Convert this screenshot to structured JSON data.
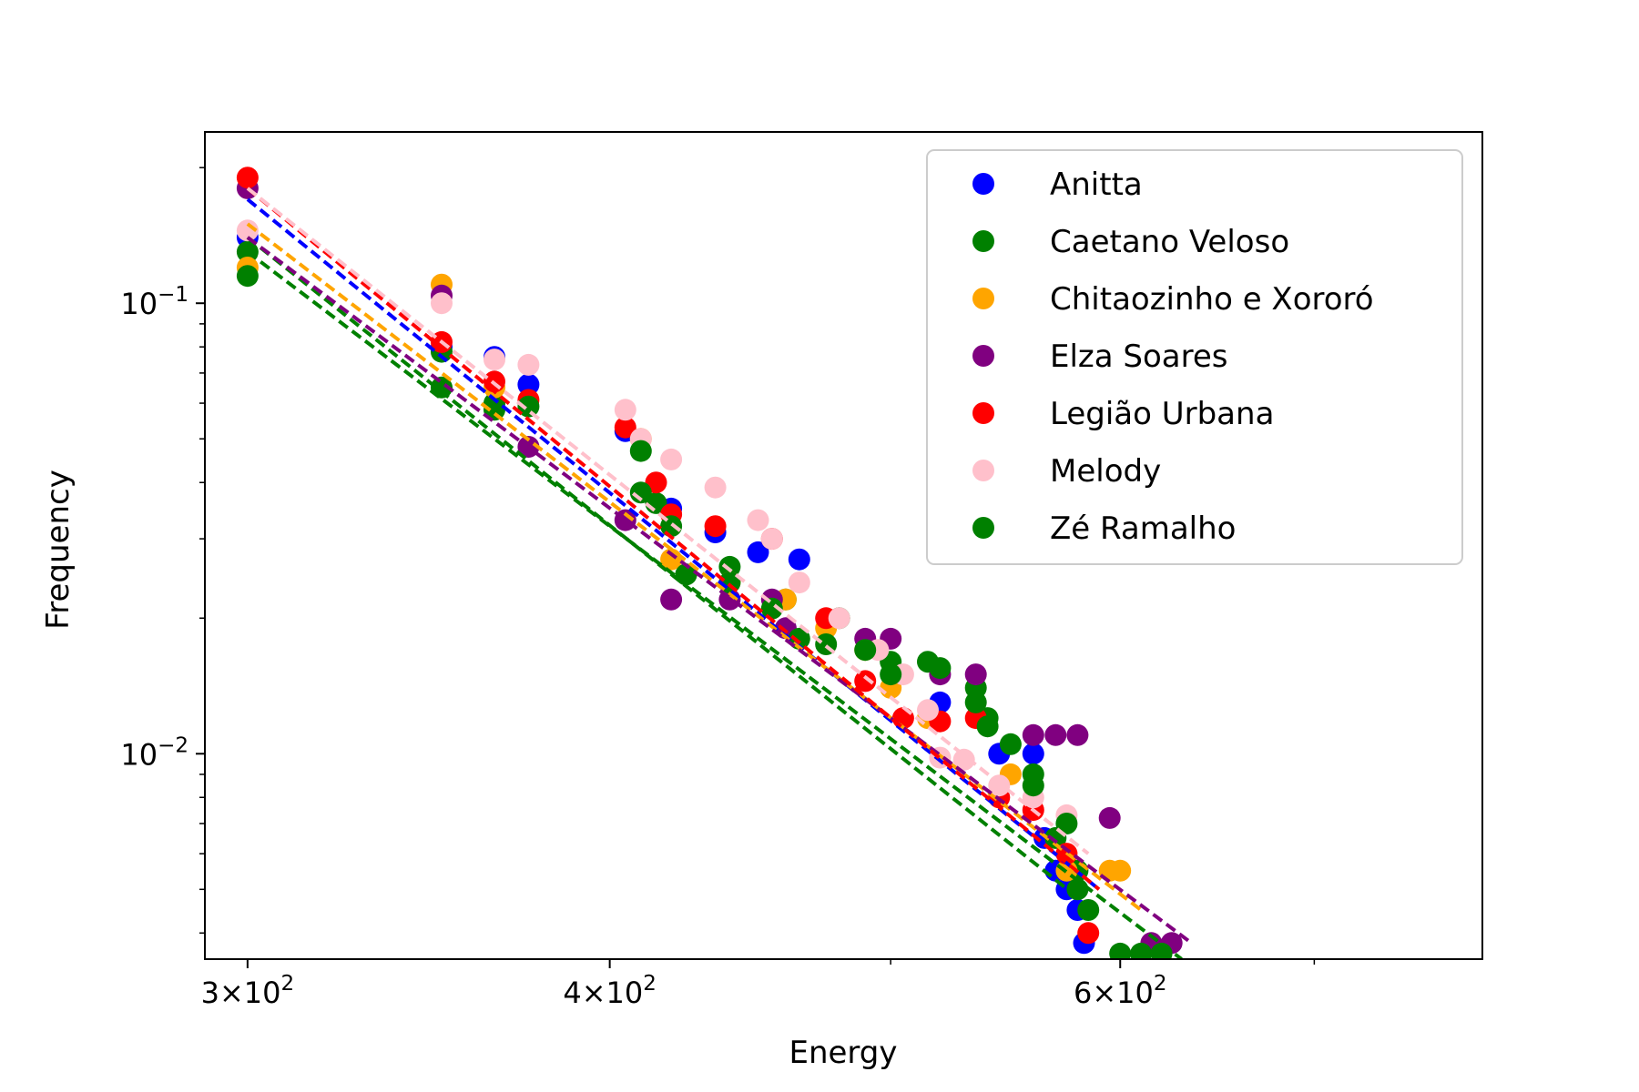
{
  "chart_data": {
    "type": "scatter",
    "x_scale": "log",
    "y_scale": "log",
    "xlabel": "Energy",
    "ylabel": "Frequency",
    "xlim": [
      290,
      800
    ],
    "ylim": [
      0.0035,
      0.24
    ],
    "x_ticks": [
      {
        "value": 300,
        "mant": "3",
        "exp": "2"
      },
      {
        "value": 400,
        "mant": "4",
        "exp": "2"
      },
      {
        "value": 600,
        "mant": "6",
        "exp": "2"
      }
    ],
    "x_minor_ticks": [
      500,
      700
    ],
    "y_ticks": [
      {
        "value": 0.1,
        "exp": "−1"
      },
      {
        "value": 0.01,
        "exp": "−2"
      }
    ],
    "legend": {
      "position": "top-right"
    },
    "series": [
      {
        "name": "Anitta",
        "color": "#0000ff",
        "points": [
          [
            300,
            0.14
          ],
          [
            350,
            0.08
          ],
          [
            365,
            0.076
          ],
          [
            375,
            0.066
          ],
          [
            405,
            0.052
          ],
          [
            420,
            0.035
          ],
          [
            435,
            0.031
          ],
          [
            450,
            0.028
          ],
          [
            465,
            0.027
          ],
          [
            520,
            0.013
          ],
          [
            545,
            0.01
          ],
          [
            560,
            0.01
          ],
          [
            565,
            0.0065
          ],
          [
            570,
            0.0055
          ],
          [
            575,
            0.005
          ],
          [
            580,
            0.0045
          ],
          [
            583,
            0.0038
          ]
        ],
        "fit": [
          [
            300,
            0.17
          ],
          [
            590,
            0.005
          ]
        ]
      },
      {
        "name": "Caetano Veloso",
        "color": "#008000",
        "points": [
          [
            300,
            0.13
          ],
          [
            350,
            0.078
          ],
          [
            365,
            0.06
          ],
          [
            415,
            0.036
          ],
          [
            425,
            0.025
          ],
          [
            440,
            0.026
          ],
          [
            460,
            0.022
          ],
          [
            480,
            0.02
          ],
          [
            500,
            0.016
          ],
          [
            515,
            0.016
          ],
          [
            535,
            0.014
          ],
          [
            540,
            0.012
          ],
          [
            560,
            0.009
          ],
          [
            570,
            0.0065
          ],
          [
            580,
            0.0055
          ]
        ],
        "fit": [
          [
            300,
            0.14
          ],
          [
            580,
            0.0048
          ]
        ]
      },
      {
        "name": "Chitaozinho e Xororó",
        "color": "#ffa500",
        "points": [
          [
            300,
            0.12
          ],
          [
            350,
            0.11
          ],
          [
            365,
            0.065
          ],
          [
            410,
            0.05
          ],
          [
            420,
            0.027
          ],
          [
            440,
            0.024
          ],
          [
            460,
            0.022
          ],
          [
            475,
            0.019
          ],
          [
            490,
            0.017
          ],
          [
            500,
            0.014
          ],
          [
            515,
            0.012
          ],
          [
            550,
            0.009
          ],
          [
            575,
            0.0055
          ],
          [
            595,
            0.0055
          ],
          [
            600,
            0.0055
          ]
        ],
        "fit": [
          [
            300,
            0.15
          ],
          [
            610,
            0.0045
          ]
        ]
      },
      {
        "name": "Elza Soares",
        "color": "#800080",
        "points": [
          [
            300,
            0.18
          ],
          [
            350,
            0.104
          ],
          [
            375,
            0.048
          ],
          [
            405,
            0.033
          ],
          [
            420,
            0.022
          ],
          [
            440,
            0.022
          ],
          [
            455,
            0.022
          ],
          [
            460,
            0.019
          ],
          [
            490,
            0.018
          ],
          [
            500,
            0.018
          ],
          [
            520,
            0.015
          ],
          [
            535,
            0.015
          ],
          [
            560,
            0.011
          ],
          [
            570,
            0.011
          ],
          [
            580,
            0.011
          ],
          [
            595,
            0.0072
          ],
          [
            615,
            0.0038
          ],
          [
            625,
            0.0038
          ]
        ],
        "fit": [
          [
            300,
            0.14
          ],
          [
            635,
            0.0038
          ]
        ]
      },
      {
        "name": "Legião Urbana",
        "color": "#ff0000",
        "points": [
          [
            300,
            0.19
          ],
          [
            350,
            0.082
          ],
          [
            365,
            0.067
          ],
          [
            375,
            0.061
          ],
          [
            405,
            0.053
          ],
          [
            415,
            0.04
          ],
          [
            420,
            0.034
          ],
          [
            435,
            0.032
          ],
          [
            455,
            0.03
          ],
          [
            475,
            0.02
          ],
          [
            490,
            0.0145
          ],
          [
            505,
            0.012
          ],
          [
            520,
            0.0118
          ],
          [
            535,
            0.012
          ],
          [
            545,
            0.008
          ],
          [
            560,
            0.0075
          ],
          [
            575,
            0.006
          ],
          [
            585,
            0.004
          ]
        ],
        "fit": [
          [
            300,
            0.18
          ],
          [
            590,
            0.005
          ]
        ]
      },
      {
        "name": "Melody",
        "color": "#ffc0cb",
        "points": [
          [
            300,
            0.145
          ],
          [
            350,
            0.1
          ],
          [
            365,
            0.075
          ],
          [
            375,
            0.073
          ],
          [
            405,
            0.058
          ],
          [
            410,
            0.05
          ],
          [
            420,
            0.045
          ],
          [
            435,
            0.039
          ],
          [
            450,
            0.033
          ],
          [
            455,
            0.03
          ],
          [
            465,
            0.024
          ],
          [
            480,
            0.02
          ],
          [
            495,
            0.017
          ],
          [
            505,
            0.015
          ],
          [
            515,
            0.0125
          ],
          [
            520,
            0.0098
          ],
          [
            530,
            0.0097
          ],
          [
            545,
            0.0085
          ],
          [
            560,
            0.008
          ],
          [
            575,
            0.0073
          ]
        ],
        "fit": [
          [
            300,
            0.18
          ],
          [
            585,
            0.006
          ]
        ]
      },
      {
        "name": "Zé Ramalho",
        "color": "#008000",
        "points": [
          [
            300,
            0.115
          ],
          [
            350,
            0.065
          ],
          [
            365,
            0.058
          ],
          [
            375,
            0.059
          ],
          [
            410,
            0.047
          ],
          [
            410,
            0.038
          ],
          [
            420,
            0.032
          ],
          [
            425,
            0.025
          ],
          [
            440,
            0.024
          ],
          [
            455,
            0.021
          ],
          [
            465,
            0.018
          ],
          [
            475,
            0.0175
          ],
          [
            490,
            0.017
          ],
          [
            500,
            0.015
          ],
          [
            520,
            0.0155
          ],
          [
            535,
            0.013
          ],
          [
            540,
            0.0115
          ],
          [
            550,
            0.0105
          ],
          [
            560,
            0.0085
          ],
          [
            575,
            0.007
          ],
          [
            580,
            0.005
          ],
          [
            585,
            0.0045
          ],
          [
            600,
            0.0036
          ],
          [
            610,
            0.0036
          ],
          [
            620,
            0.0036
          ]
        ],
        "fit": [
          [
            300,
            0.13
          ],
          [
            630,
            0.0035
          ]
        ]
      }
    ]
  }
}
